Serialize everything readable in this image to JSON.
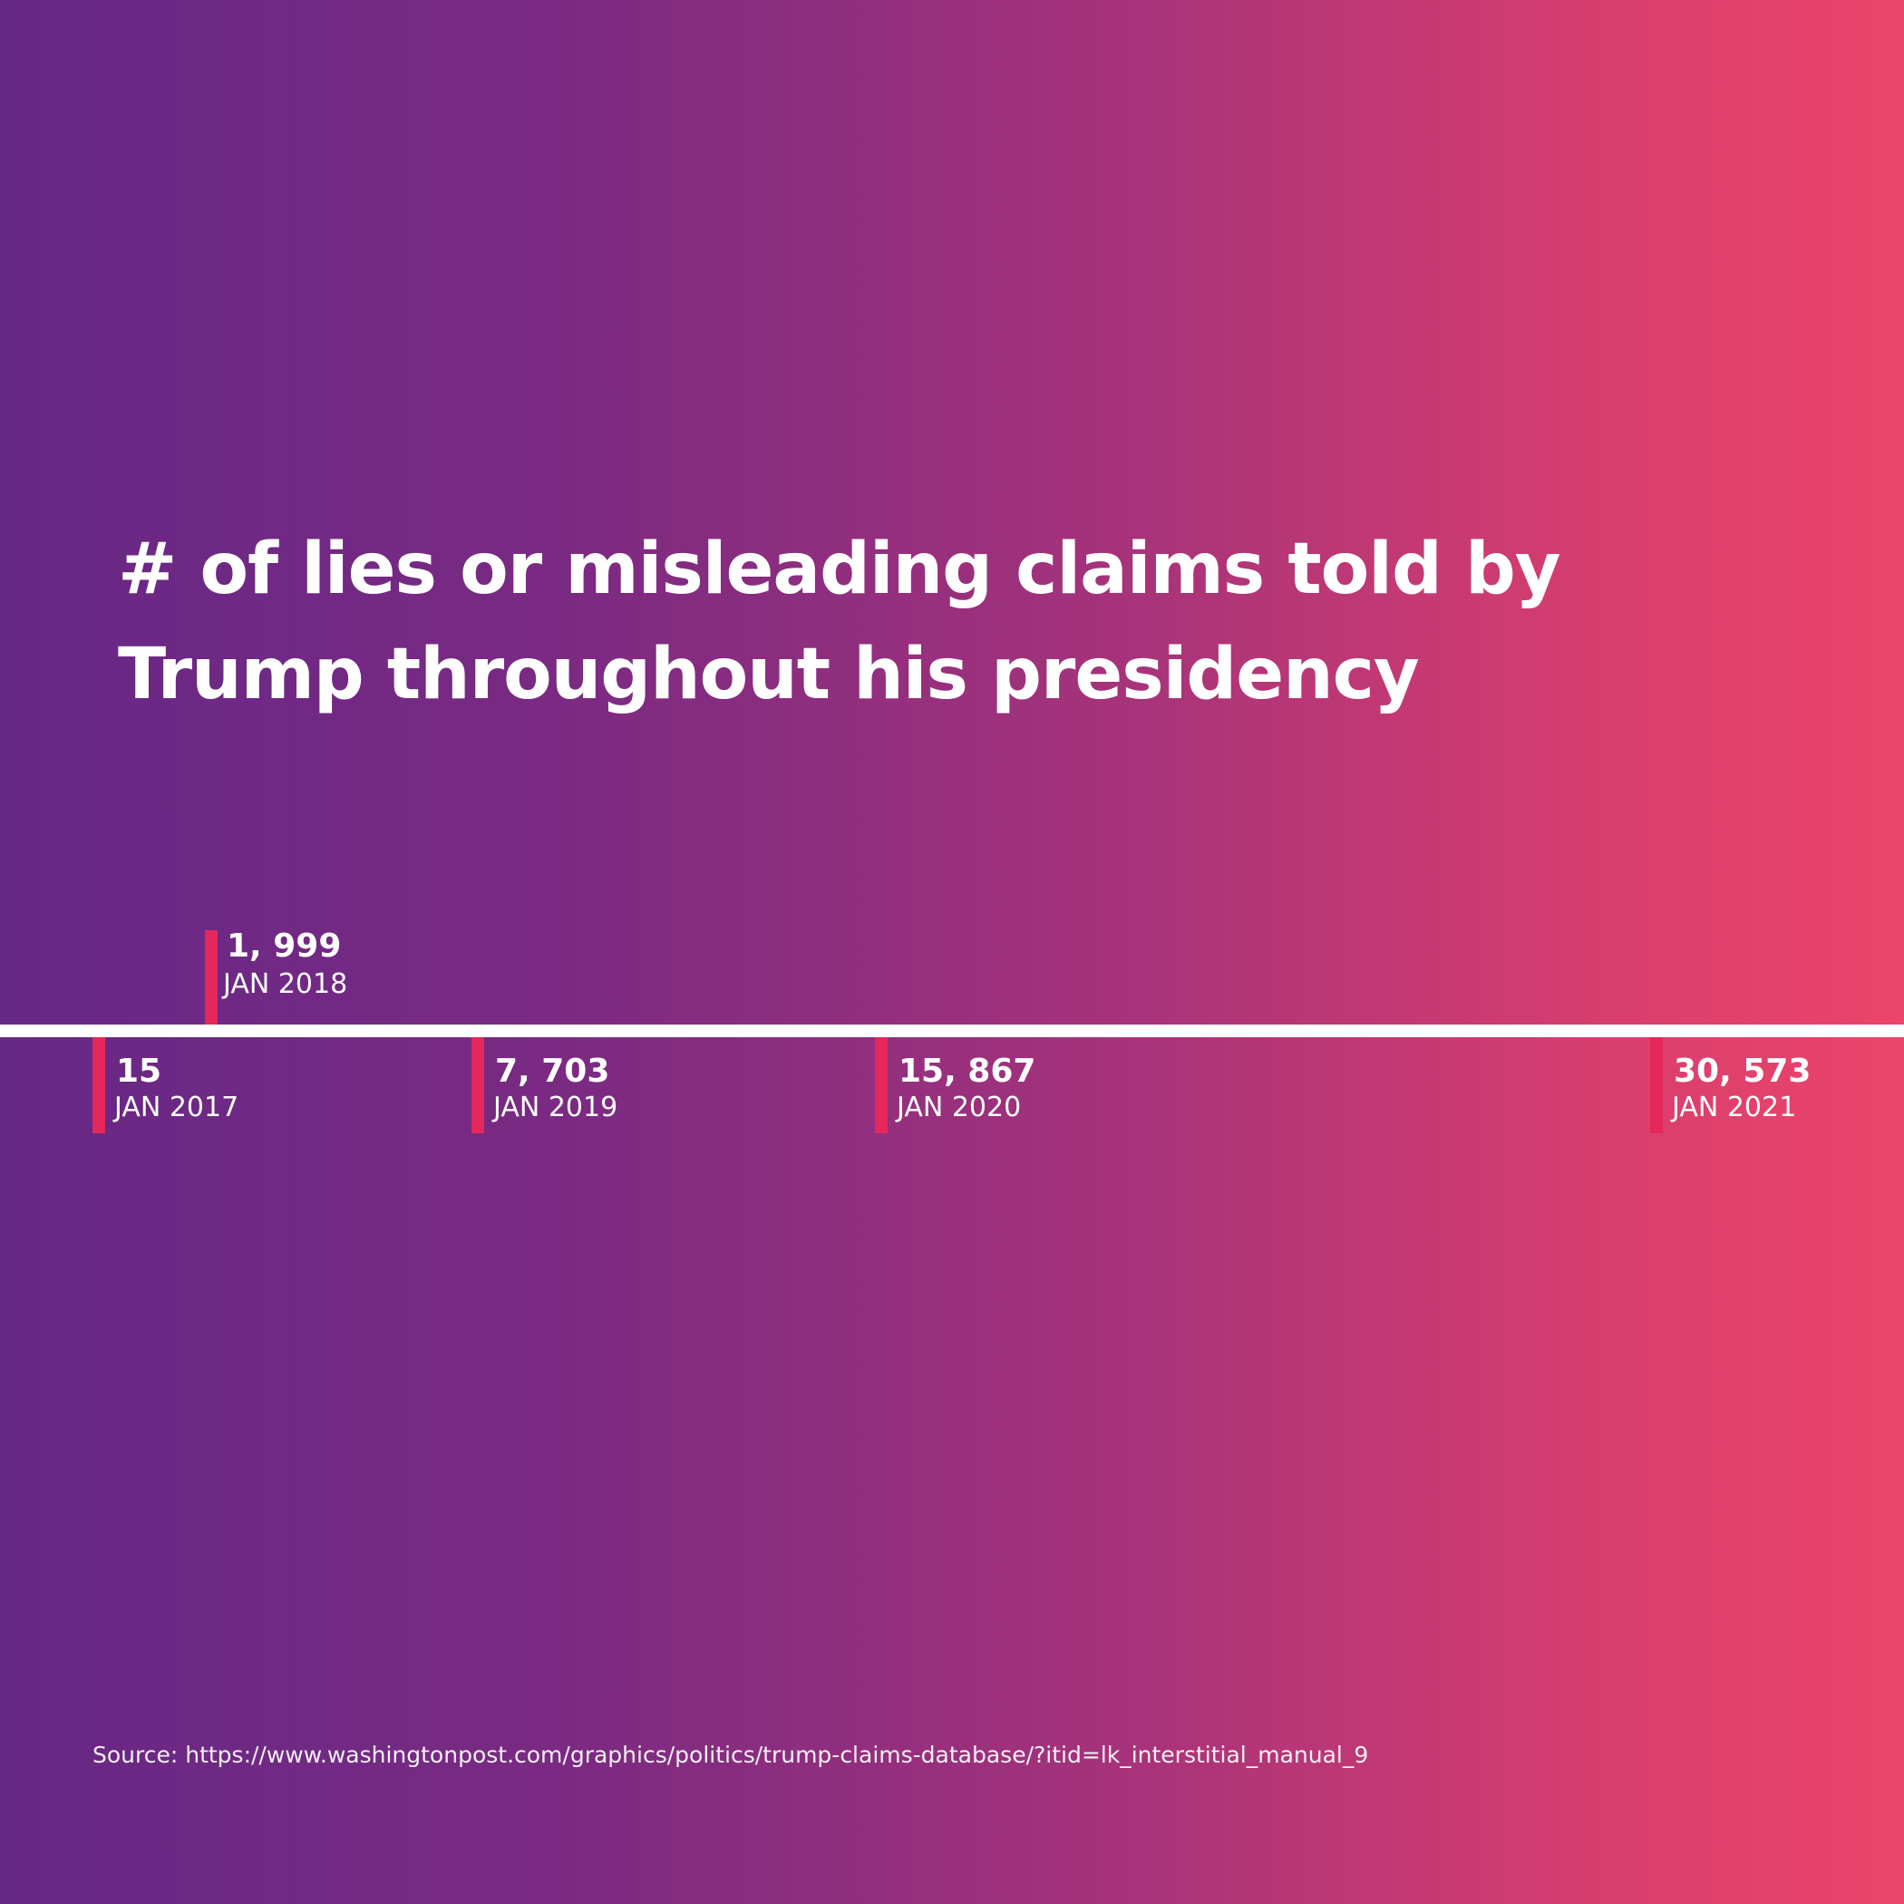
{
  "page": {
    "title": "# of lies or misleading claims told by Trump throughout his presidency",
    "source": "Source: https://www.washingtonpost.com/graphics/politics/trump-claims-database/?itid=lk_interstitial_manual_9"
  },
  "colors": {
    "gradient_start": "#662885",
    "gradient_end": "#eb456a",
    "tick": "#e4285b",
    "text": "#ffffff"
  },
  "chart_data": {
    "type": "timeline",
    "title": "# of lies or misleading claims told by Trump throughout his presidency",
    "points": [
      {
        "date": "JAN 2017",
        "value_label": "15",
        "value": 15,
        "side": "below"
      },
      {
        "date": "JAN 2018",
        "value_label": "1, 999",
        "value": 1999,
        "side": "above"
      },
      {
        "date": "JAN 2019",
        "value_label": "7, 703",
        "value": 7703,
        "side": "below"
      },
      {
        "date": "JAN 2020",
        "value_label": "15, 867",
        "value": 15867,
        "side": "below"
      },
      {
        "date": "JAN 2021",
        "value_label": "30, 573",
        "value": 30573,
        "side": "below"
      }
    ],
    "x_range": [
      "JAN 2017",
      "JAN 2021"
    ]
  }
}
